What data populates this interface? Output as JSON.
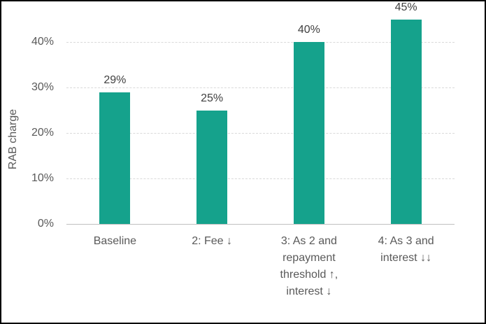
{
  "chart_data": {
    "type": "bar",
    "title": "",
    "xlabel": "",
    "ylabel": "RAB charge",
    "categories": [
      "Baseline",
      "2: Fee ↓",
      "3: As 2 and\nrepayment\nthreshold ↑,\ninterest ↓",
      "4: As 3 and\ninterest ↓↓"
    ],
    "values": [
      29,
      25,
      40,
      45
    ],
    "data_labels": [
      "29%",
      "25%",
      "40%",
      "45%"
    ],
    "y_ticks": [
      {
        "value": 0,
        "label": "0%"
      },
      {
        "value": 10,
        "label": "10%"
      },
      {
        "value": 20,
        "label": "20%"
      },
      {
        "value": 30,
        "label": "30%"
      },
      {
        "value": 40,
        "label": "40%"
      }
    ],
    "ylim": [
      0,
      45
    ],
    "grid": true,
    "legend": "none",
    "colors": {
      "bar": "#15a28c",
      "gridline": "#d9d9d9",
      "axis_line": "#bfbfbf",
      "tick_text": "#595959",
      "data_label_text": "#404040",
      "frame_border": "#000000"
    }
  }
}
